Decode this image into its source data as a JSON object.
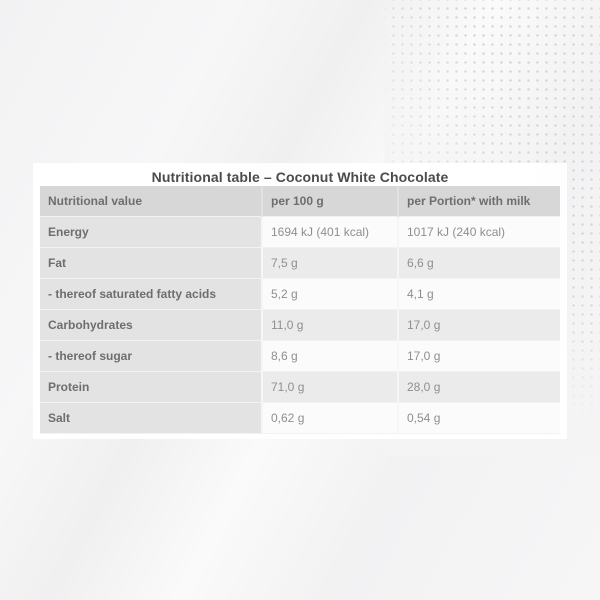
{
  "page": {
    "background_base": "#f4f4f5",
    "dot_color": "#d2d2d4"
  },
  "card": {
    "title": "Nutritional table – Coconut White Chocolate"
  },
  "table": {
    "columns": [
      "Nutritional value",
      "per 100 g",
      "per Portion* with milk"
    ],
    "rows": [
      [
        "Energy",
        "1694 kJ (401 kcal)",
        "1017 kJ (240 kcal)"
      ],
      [
        "Fat",
        "7,5 g",
        "6,6 g"
      ],
      [
        "- thereof saturated fatty acids",
        "5,2 g",
        "4,1 g"
      ],
      [
        "Carbohydrates",
        "11,0 g",
        "17,0 g"
      ],
      [
        "- thereof sugar",
        "8,6 g",
        "17,0 g"
      ],
      [
        "Protein",
        "71,0 g",
        "28,0 g"
      ],
      [
        "Salt",
        "0,62 g",
        "0,54 g"
      ]
    ]
  },
  "colors": {
    "header_background": "#d7d7d7",
    "label_column_background": "#e3e3e3",
    "row_background": "#fbfbfb",
    "row_alternate_background": "#ebebeb",
    "heading_text": "#4b4b4b",
    "label_text": "#6e6e6e",
    "value_text": "#8f8f8f"
  }
}
